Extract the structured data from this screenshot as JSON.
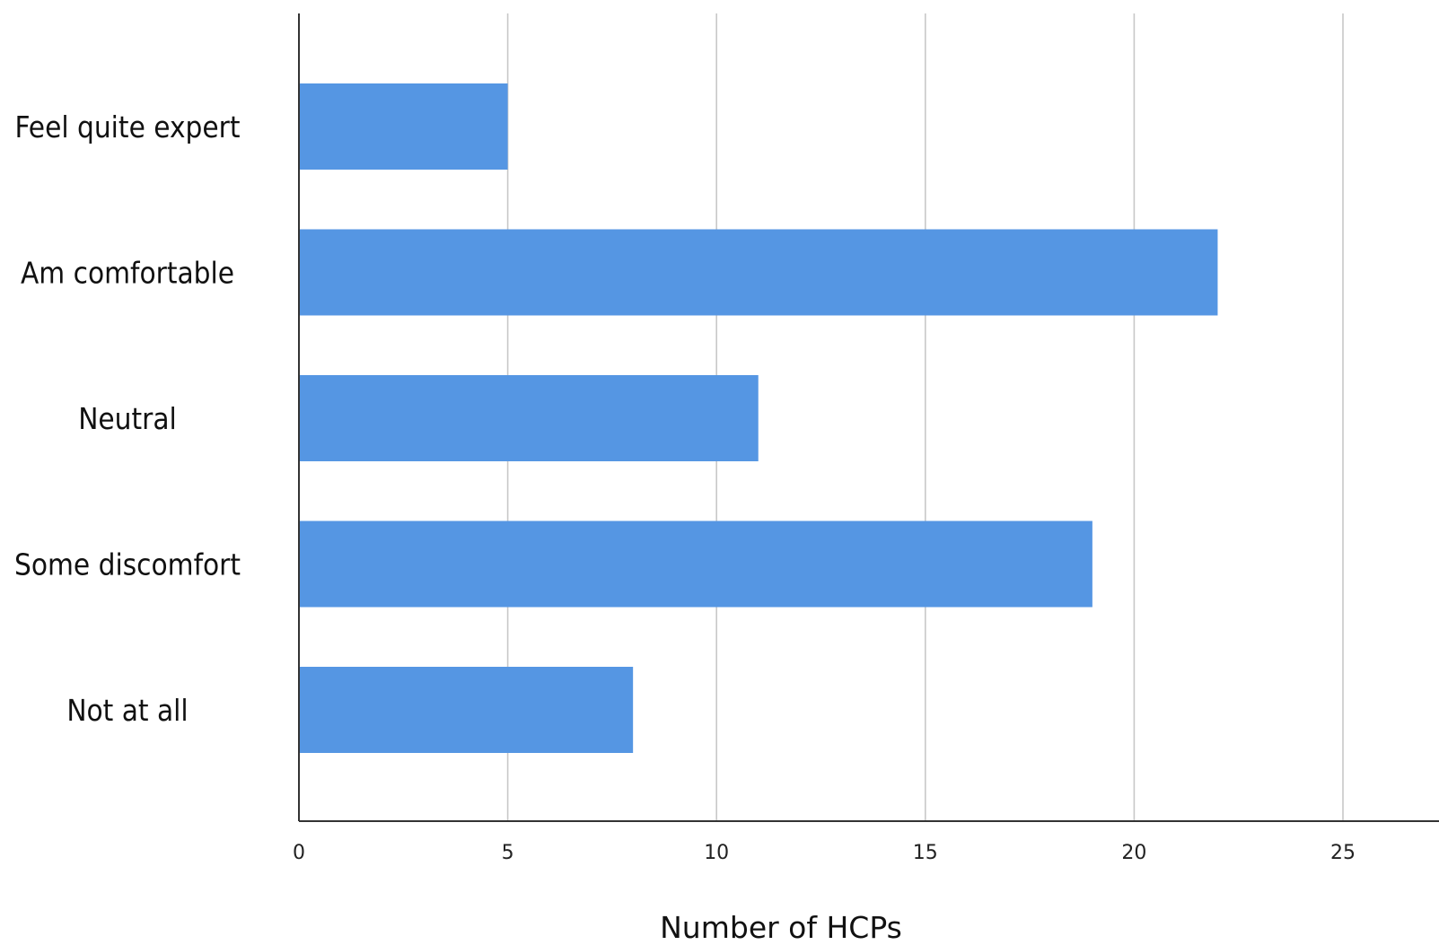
{
  "chart_data": {
    "type": "bar",
    "orientation": "horizontal",
    "categories": [
      "Feel quite expert",
      "Am comfortable",
      "Neutral",
      "Some discomfort",
      "Not at all"
    ],
    "values": [
      5,
      22,
      11,
      19,
      8
    ],
    "title": "",
    "xlabel": "Number of HCPs",
    "ylabel": "",
    "xlim": [
      0,
      27
    ],
    "xticks": [
      "0",
      "5",
      "10",
      "15",
      "20",
      "25"
    ],
    "grid": "vertical",
    "legend": "none",
    "bar_color": "#5596E3",
    "grid_color": "#c8c8c8",
    "axis_color": "#333333"
  }
}
